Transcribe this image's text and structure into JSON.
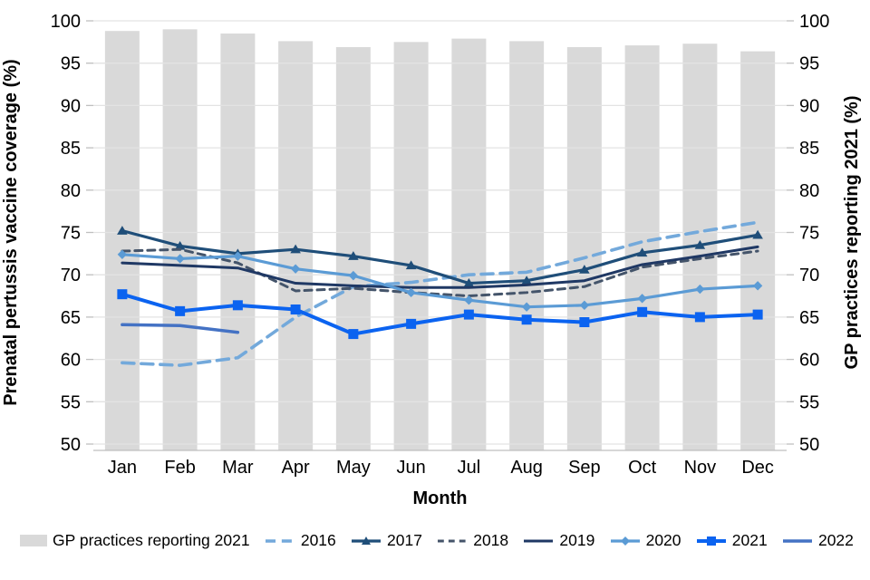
{
  "chart_data": {
    "type": "combo bar+line, dual y-axis",
    "x_label": "Month",
    "categories": [
      "Jan",
      "Feb",
      "Mar",
      "Apr",
      "May",
      "Jun",
      "Jul",
      "Aug",
      "Sep",
      "Oct",
      "Nov",
      "Dec"
    ],
    "y_left": {
      "label": "Prenatal pertussis vaccine coverage (%)",
      "min": 50,
      "max": 100,
      "step": 5
    },
    "y_right": {
      "label": "GP practices reporting 2021 (%)",
      "min": 50,
      "max": 100,
      "step": 5
    },
    "grid": "horizontal, light gray",
    "legend_position": "bottom",
    "bar_series": {
      "name": "GP practices reporting 2021",
      "color": "#D9D9D9",
      "values": [
        98.8,
        99.0,
        98.5,
        97.6,
        96.9,
        97.5,
        97.9,
        97.6,
        96.9,
        97.1,
        97.3,
        96.4
      ]
    },
    "line_series": [
      {
        "name": "2016",
        "color": "#73A9DB",
        "dash": [
          13,
          8
        ],
        "marker": "none",
        "width": 3.6,
        "values": [
          59.6,
          59.3,
          60.2,
          65.0,
          68.6,
          69.1,
          70.0,
          70.3,
          72.0,
          73.9,
          75.1,
          76.2
        ]
      },
      {
        "name": "2017",
        "color": "#1F4E79",
        "dash": null,
        "marker": "triangle",
        "width": 3.2,
        "values": [
          75.2,
          73.4,
          72.5,
          73.0,
          72.2,
          71.1,
          69.0,
          69.3,
          70.6,
          72.6,
          73.5,
          74.7
        ]
      },
      {
        "name": "2018",
        "color": "#44546A",
        "dash": [
          8,
          6
        ],
        "marker": "none",
        "width": 3.0,
        "values": [
          72.8,
          73.0,
          71.4,
          68.1,
          68.4,
          67.9,
          67.5,
          67.9,
          68.6,
          70.9,
          71.9,
          72.8
        ]
      },
      {
        "name": "2019",
        "color": "#1F3864",
        "dash": null,
        "marker": "none",
        "width": 3.0,
        "values": [
          71.4,
          71.1,
          70.8,
          69.0,
          68.7,
          68.5,
          68.5,
          68.8,
          69.3,
          71.2,
          72.2,
          73.3
        ]
      },
      {
        "name": "2020",
        "color": "#5B9BD5",
        "dash": null,
        "marker": "diamond",
        "width": 3.2,
        "values": [
          72.4,
          71.9,
          72.2,
          70.7,
          69.9,
          67.9,
          67.0,
          66.2,
          66.4,
          67.2,
          68.3,
          68.7
        ]
      },
      {
        "name": "2021",
        "color": "#0B63F0",
        "dash": null,
        "marker": "square",
        "width": 4.0,
        "values": [
          67.7,
          65.7,
          66.4,
          65.9,
          63.0,
          64.2,
          65.3,
          64.7,
          64.4,
          65.6,
          65.0,
          65.3
        ]
      },
      {
        "name": "2022",
        "color": "#4472C4",
        "dash": null,
        "marker": "none",
        "width": 3.5,
        "values": [
          64.1,
          64.0,
          63.2,
          null,
          null,
          null,
          null,
          null,
          null,
          null,
          null,
          null
        ]
      }
    ],
    "colors": {
      "grid": "#E3E3E3",
      "axis_line": "#BFBFBF",
      "text": "#000000"
    }
  }
}
